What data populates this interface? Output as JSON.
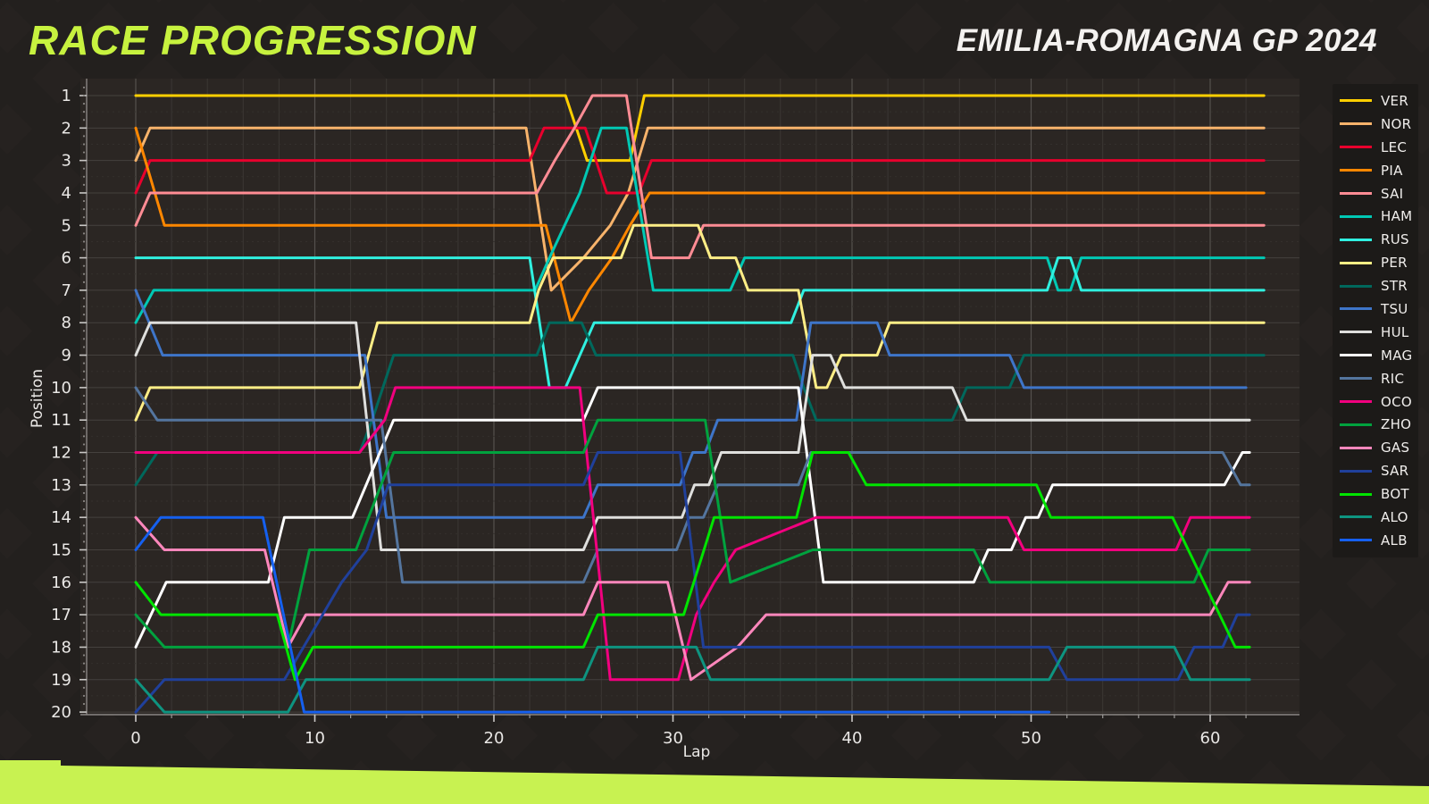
{
  "header": {
    "title": "RACE PROGRESSION",
    "subtitle": "EMILIA-ROMAGNA GP 2024"
  },
  "accent_colors": {
    "lime": "#C8F251",
    "background": "#262220",
    "legend_background": "#1C1A18"
  },
  "chart_data": {
    "type": "line",
    "title": "Race Progression",
    "xlabel": "Lap",
    "ylabel": "Position",
    "x_ticks": [
      0,
      10,
      20,
      30,
      40,
      50,
      60
    ],
    "y_ticks": [
      1,
      2,
      3,
      4,
      5,
      6,
      7,
      8,
      9,
      10,
      11,
      12,
      13,
      14,
      15,
      16,
      17,
      18,
      19,
      20
    ],
    "xlim": [
      -3,
      65
    ],
    "ylim": [
      1,
      20
    ],
    "grid": "on",
    "legend_position": "right",
    "series": [
      {
        "name": "VER",
        "color": "#FFCF00",
        "points": [
          [
            0,
            1
          ],
          [
            24,
            1
          ],
          [
            25.2,
            3
          ],
          [
            27.6,
            3
          ],
          [
            28.4,
            1
          ],
          [
            63,
            1
          ]
        ]
      },
      {
        "name": "NOR",
        "color": "#F7B36B",
        "points": [
          [
            0,
            3
          ],
          [
            0.8,
            2
          ],
          [
            21.8,
            2
          ],
          [
            23.2,
            7
          ],
          [
            25,
            6
          ],
          [
            26.5,
            5
          ],
          [
            27.5,
            4
          ],
          [
            28.6,
            2
          ],
          [
            63,
            2
          ]
        ]
      },
      {
        "name": "LEC",
        "color": "#E8002D",
        "points": [
          [
            0,
            4
          ],
          [
            0.8,
            3
          ],
          [
            22,
            3
          ],
          [
            22.8,
            2
          ],
          [
            25.1,
            2
          ],
          [
            26.3,
            4
          ],
          [
            28.1,
            4
          ],
          [
            28.8,
            3
          ],
          [
            63,
            3
          ]
        ]
      },
      {
        "name": "PIA",
        "color": "#FF8700",
        "points": [
          [
            0,
            2
          ],
          [
            1.6,
            5
          ],
          [
            22.9,
            5
          ],
          [
            24.3,
            8
          ],
          [
            25.3,
            7
          ],
          [
            26.6,
            6
          ],
          [
            27.6,
            5
          ],
          [
            28.7,
            4
          ],
          [
            63,
            4
          ]
        ]
      },
      {
        "name": "SAI",
        "color": "#FF8C94",
        "points": [
          [
            0,
            5
          ],
          [
            0.8,
            4
          ],
          [
            22.4,
            4
          ],
          [
            23.4,
            3
          ],
          [
            24.5,
            2
          ],
          [
            25.5,
            1
          ],
          [
            27.4,
            1
          ],
          [
            28.8,
            6
          ],
          [
            30.9,
            6
          ],
          [
            31.7,
            5
          ],
          [
            63,
            5
          ]
        ]
      },
      {
        "name": "HAM",
        "color": "#00C8B4",
        "points": [
          [
            0,
            8
          ],
          [
            1,
            7
          ],
          [
            22.3,
            7
          ],
          [
            23.1,
            6
          ],
          [
            24.8,
            4
          ],
          [
            26,
            2
          ],
          [
            27.4,
            2
          ],
          [
            28.9,
            7
          ],
          [
            33.2,
            7
          ],
          [
            34,
            6
          ],
          [
            50.9,
            6
          ],
          [
            51.5,
            7
          ],
          [
            52.2,
            7
          ],
          [
            52.8,
            6
          ],
          [
            63,
            6
          ]
        ]
      },
      {
        "name": "RUS",
        "color": "#30F0E0",
        "points": [
          [
            0,
            6
          ],
          [
            22,
            6
          ],
          [
            23.1,
            10
          ],
          [
            24,
            10
          ],
          [
            25.6,
            8
          ],
          [
            28,
            8
          ],
          [
            36.6,
            8
          ],
          [
            37.3,
            7
          ],
          [
            50.9,
            7
          ],
          [
            51.5,
            6
          ],
          [
            52.2,
            6
          ],
          [
            52.8,
            7
          ],
          [
            63,
            7
          ]
        ]
      },
      {
        "name": "PER",
        "color": "#FFEE86",
        "points": [
          [
            0,
            11
          ],
          [
            0.8,
            10
          ],
          [
            12.5,
            10
          ],
          [
            13.5,
            8
          ],
          [
            22,
            8
          ],
          [
            22.5,
            7
          ],
          [
            23.3,
            6
          ],
          [
            27.1,
            6
          ],
          [
            27.8,
            5
          ],
          [
            31.4,
            5
          ],
          [
            32.1,
            6
          ],
          [
            33.5,
            6
          ],
          [
            34.2,
            7
          ],
          [
            37,
            7
          ],
          [
            38,
            10
          ],
          [
            38.6,
            10
          ],
          [
            39.4,
            9
          ],
          [
            41.4,
            9
          ],
          [
            42.1,
            8
          ],
          [
            63,
            8
          ]
        ]
      },
      {
        "name": "STR",
        "color": "#00685C",
        "points": [
          [
            0,
            13
          ],
          [
            1.2,
            12
          ],
          [
            12.5,
            12
          ],
          [
            13.2,
            11
          ],
          [
            13.8,
            10
          ],
          [
            14.4,
            9
          ],
          [
            22.4,
            9
          ],
          [
            23.1,
            8
          ],
          [
            24.9,
            8
          ],
          [
            25.7,
            9
          ],
          [
            36.7,
            9
          ],
          [
            37.3,
            10
          ],
          [
            38,
            11
          ],
          [
            45.6,
            11
          ],
          [
            46.4,
            10
          ],
          [
            48.8,
            10
          ],
          [
            49.6,
            9
          ],
          [
            63,
            9
          ]
        ]
      },
      {
        "name": "TSU",
        "color": "#3E75C9",
        "points": [
          [
            0,
            7
          ],
          [
            1.5,
            9
          ],
          [
            12.8,
            9
          ],
          [
            14,
            14
          ],
          [
            25,
            14
          ],
          [
            25.8,
            13
          ],
          [
            30.4,
            13
          ],
          [
            31.1,
            12
          ],
          [
            31.8,
            12
          ],
          [
            32.5,
            11
          ],
          [
            36.9,
            11
          ],
          [
            37.7,
            8
          ],
          [
            41.4,
            8
          ],
          [
            42.1,
            9
          ],
          [
            48.8,
            9
          ],
          [
            49.6,
            10
          ],
          [
            62,
            10
          ]
        ]
      },
      {
        "name": "HUL",
        "color": "#DFDFDD",
        "points": [
          [
            0,
            9
          ],
          [
            0.8,
            8
          ],
          [
            12.3,
            8
          ],
          [
            13.7,
            15
          ],
          [
            25,
            15
          ],
          [
            25.8,
            14
          ],
          [
            30.5,
            14
          ],
          [
            31.2,
            13
          ],
          [
            32,
            13
          ],
          [
            32.7,
            12
          ],
          [
            37,
            12
          ],
          [
            37.8,
            9
          ],
          [
            38.8,
            9
          ],
          [
            39.6,
            10
          ],
          [
            45.6,
            10
          ],
          [
            46.4,
            11
          ],
          [
            62.2,
            11
          ]
        ]
      },
      {
        "name": "MAG",
        "color": "#FFFFFF",
        "points": [
          [
            0,
            18
          ],
          [
            1.7,
            16
          ],
          [
            7.4,
            16
          ],
          [
            8.3,
            14
          ],
          [
            12.1,
            14
          ],
          [
            14.4,
            11
          ],
          [
            25,
            11
          ],
          [
            25.8,
            10
          ],
          [
            37,
            10
          ],
          [
            38.4,
            16
          ],
          [
            46.8,
            16
          ],
          [
            47.6,
            15
          ],
          [
            48.9,
            15
          ],
          [
            49.7,
            14
          ],
          [
            50.4,
            14
          ],
          [
            51.2,
            13
          ],
          [
            60.8,
            13
          ],
          [
            61.8,
            12
          ],
          [
            62.2,
            12
          ]
        ]
      },
      {
        "name": "RIC",
        "color": "#54759E",
        "points": [
          [
            0,
            10
          ],
          [
            1.2,
            11
          ],
          [
            13.7,
            11
          ],
          [
            14.9,
            16
          ],
          [
            25,
            16
          ],
          [
            25.8,
            15
          ],
          [
            30.2,
            15
          ],
          [
            30.9,
            14
          ],
          [
            31.7,
            14
          ],
          [
            32.5,
            13
          ],
          [
            37,
            13
          ],
          [
            37.7,
            12
          ],
          [
            60.7,
            12
          ],
          [
            61.7,
            13
          ],
          [
            62.2,
            13
          ]
        ]
      },
      {
        "name": "OCO",
        "color": "#F2007F",
        "points": [
          [
            0,
            12
          ],
          [
            12.5,
            12
          ],
          [
            13.9,
            11
          ],
          [
            14.5,
            10
          ],
          [
            24.8,
            10
          ],
          [
            26.5,
            19
          ],
          [
            30.3,
            19
          ],
          [
            31.3,
            17
          ],
          [
            32.3,
            16
          ],
          [
            33.5,
            15
          ],
          [
            38,
            14
          ],
          [
            48.7,
            14
          ],
          [
            49.6,
            15
          ],
          [
            58.1,
            15
          ],
          [
            58.9,
            14
          ],
          [
            62.2,
            14
          ]
        ]
      },
      {
        "name": "ZHO",
        "color": "#00A23E",
        "points": [
          [
            0,
            17
          ],
          [
            1.6,
            18
          ],
          [
            8.5,
            18
          ],
          [
            9.7,
            15
          ],
          [
            12.3,
            15
          ],
          [
            14.4,
            12
          ],
          [
            25,
            12
          ],
          [
            25.8,
            11
          ],
          [
            31.8,
            11
          ],
          [
            33.2,
            16
          ],
          [
            37.8,
            15
          ],
          [
            46.8,
            15
          ],
          [
            47.7,
            16
          ],
          [
            59.1,
            16
          ],
          [
            59.9,
            15
          ],
          [
            62.2,
            15
          ]
        ]
      },
      {
        "name": "GAS",
        "color": "#FF87BC",
        "points": [
          [
            0,
            14
          ],
          [
            1.6,
            15
          ],
          [
            7.2,
            15
          ],
          [
            8.5,
            18
          ],
          [
            9.5,
            17
          ],
          [
            25,
            17
          ],
          [
            25.8,
            16
          ],
          [
            29.7,
            16
          ],
          [
            31,
            19
          ],
          [
            33.6,
            18
          ],
          [
            35.2,
            17
          ],
          [
            60,
            17
          ],
          [
            61,
            16
          ],
          [
            62.2,
            16
          ]
        ]
      },
      {
        "name": "SAR",
        "color": "#20409B",
        "points": [
          [
            0,
            20
          ],
          [
            1.6,
            19
          ],
          [
            8.3,
            19
          ],
          [
            11.5,
            16
          ],
          [
            12.9,
            15
          ],
          [
            13.5,
            14
          ],
          [
            14.1,
            13
          ],
          [
            25,
            13
          ],
          [
            25.8,
            12
          ],
          [
            30.4,
            12
          ],
          [
            31.7,
            18
          ],
          [
            51,
            18
          ],
          [
            52,
            19
          ],
          [
            58.2,
            19
          ],
          [
            59.1,
            18
          ],
          [
            60.7,
            18
          ],
          [
            61.5,
            17
          ],
          [
            62.2,
            17
          ]
        ]
      },
      {
        "name": "BOT",
        "color": "#00E400",
        "points": [
          [
            0,
            16
          ],
          [
            1.4,
            17
          ],
          [
            7.9,
            17
          ],
          [
            8.9,
            19
          ],
          [
            9.9,
            18
          ],
          [
            25,
            18
          ],
          [
            25.8,
            17
          ],
          [
            30.6,
            17
          ],
          [
            32.3,
            14
          ],
          [
            36.9,
            14
          ],
          [
            37.8,
            12
          ],
          [
            39.8,
            12
          ],
          [
            40.8,
            13
          ],
          [
            50.3,
            13
          ],
          [
            51.1,
            14
          ],
          [
            57.9,
            14
          ],
          [
            61.4,
            18
          ],
          [
            62.2,
            18
          ]
        ]
      },
      {
        "name": "ALO",
        "color": "#0E9480",
        "points": [
          [
            0,
            19
          ],
          [
            1.6,
            20
          ],
          [
            8.5,
            20
          ],
          [
            9.5,
            19
          ],
          [
            25,
            19
          ],
          [
            25.8,
            18
          ],
          [
            31.3,
            18
          ],
          [
            32.1,
            19
          ],
          [
            51,
            19
          ],
          [
            52,
            18
          ],
          [
            58,
            18
          ],
          [
            58.9,
            19
          ],
          [
            62.2,
            19
          ]
        ]
      },
      {
        "name": "ALB",
        "color": "#1560F0",
        "points": [
          [
            0,
            15
          ],
          [
            1.4,
            14
          ],
          [
            7.1,
            14
          ],
          [
            9.4,
            20
          ],
          [
            51,
            20
          ]
        ]
      }
    ]
  }
}
